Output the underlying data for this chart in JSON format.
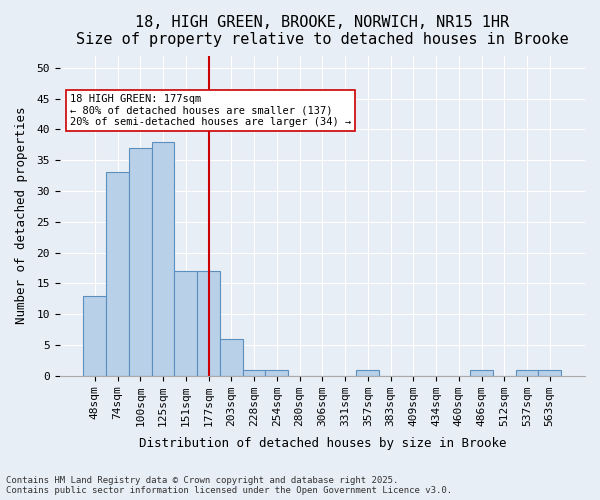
{
  "title1": "18, HIGH GREEN, BROOKE, NORWICH, NR15 1HR",
  "title2": "Size of property relative to detached houses in Brooke",
  "xlabel": "Distribution of detached houses by size in Brooke",
  "ylabel": "Number of detached properties",
  "categories": [
    "48sqm",
    "74sqm",
    "100sqm",
    "125sqm",
    "151sqm",
    "177sqm",
    "203sqm",
    "228sqm",
    "254sqm",
    "280sqm",
    "306sqm",
    "331sqm",
    "357sqm",
    "383sqm",
    "409sqm",
    "434sqm",
    "460sqm",
    "486sqm",
    "512sqm",
    "537sqm",
    "563sqm"
  ],
  "values": [
    13,
    33,
    37,
    38,
    17,
    17,
    6,
    1,
    1,
    0,
    0,
    0,
    1,
    0,
    0,
    0,
    0,
    1,
    0,
    1,
    1
  ],
  "bar_color": "#b8d0e8",
  "bar_edge_color": "#5a8fc0",
  "ylim": [
    0,
    52
  ],
  "yticks": [
    0,
    5,
    10,
    15,
    20,
    25,
    30,
    35,
    40,
    45,
    50
  ],
  "vline_x": 5,
  "vline_color": "#cc0000",
  "annotation_text": "18 HIGH GREEN: 177sqm\n← 80% of detached houses are smaller (137)\n20% of semi-detached houses are larger (34) →",
  "annotation_box_color": "#ffffff",
  "annotation_box_edge_color": "#cc0000",
  "footer_text": "Contains HM Land Registry data © Crown copyright and database right 2025.\nContains public sector information licensed under the Open Government Licence v3.0.",
  "background_color": "#e8eef5",
  "plot_bg_color": "#e8eef5",
  "title_fontsize": 11,
  "axis_label_fontsize": 9,
  "tick_fontsize": 8
}
